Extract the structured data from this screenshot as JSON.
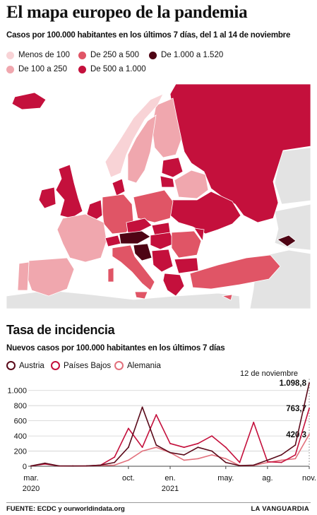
{
  "title": "El mapa europeo de la pandemia",
  "subtitle": "Casos por 100.000 habitantes en los últimos 7 días, del 1 al 14 de noviembre",
  "map_legend": [
    {
      "label": "Menos de 100",
      "color": "#f8d3d6"
    },
    {
      "label": "De 100 a 250",
      "color": "#f0a7ae"
    },
    {
      "label": "De 250 a 500",
      "color": "#e05566"
    },
    {
      "label": "De 500 a 1.000",
      "color": "#c4103c"
    },
    {
      "label": "De 1.000 a 1.520",
      "color": "#4e0414"
    }
  ],
  "colors": {
    "sea": "#ffffff",
    "land_nodata": "#e3e3e3",
    "border": "#ffffff"
  },
  "section2_title": "Tasa de incidencia",
  "section2_subtitle": "Nuevos casos por 100.000 habitantes en los últimos 7 días",
  "chart_data": {
    "type": "line",
    "title": "Tasa de incidencia",
    "subtitle": "Nuevos casos por 100.000 habitantes en los últimos 7 días",
    "x_ticks": [
      {
        "label": "mar.",
        "sub": "2020"
      },
      {
        "label": "oct.",
        "sub": ""
      },
      {
        "label": "en.",
        "sub": "2021"
      },
      {
        "label": "may.",
        "sub": ""
      },
      {
        "label": "ag.",
        "sub": ""
      },
      {
        "label": "nov.",
        "sub": ""
      }
    ],
    "ylim": [
      0,
      1100
    ],
    "y_ticks": [
      0,
      200,
      400,
      600,
      800,
      1000
    ],
    "y_tick_labels": [
      "0",
      "200",
      "400",
      "600",
      "800",
      "1.000"
    ],
    "grid": true,
    "legend_position": "top-left",
    "annotation": "12 de noviembre",
    "x": [
      "2020-03",
      "2020-04",
      "2020-05",
      "2020-06",
      "2020-07",
      "2020-08",
      "2020-09",
      "2020-10",
      "2020-11",
      "2020-12",
      "2021-01",
      "2021-02",
      "2021-03",
      "2021-04",
      "2021-05",
      "2021-06",
      "2021-07",
      "2021-08",
      "2021-09",
      "2021-10",
      "2021-11"
    ],
    "series": [
      {
        "name": "Austria",
        "color": "#5a0a1a",
        "end_label": "1.098,8",
        "values": [
          5,
          40,
          5,
          3,
          5,
          15,
          50,
          250,
          780,
          280,
          180,
          150,
          250,
          200,
          50,
          8,
          15,
          80,
          150,
          280,
          1098.8
        ]
      },
      {
        "name": "Países Bajos",
        "color": "#c4103c",
        "end_label": "763,7",
        "values": [
          5,
          30,
          5,
          3,
          5,
          15,
          120,
          500,
          250,
          680,
          300,
          250,
          300,
          400,
          250,
          50,
          580,
          60,
          50,
          150,
          763.7
        ]
      },
      {
        "name": "Alemania",
        "color": "#e2707c",
        "end_label": "420,3",
        "values": [
          5,
          35,
          5,
          3,
          5,
          10,
          15,
          80,
          200,
          250,
          180,
          80,
          100,
          150,
          100,
          8,
          10,
          50,
          80,
          100,
          420.3
        ]
      }
    ]
  },
  "footer_source": "FUENTE: ECDC y ourworldindata.org",
  "footer_brand": "LA VANGUARDIA"
}
